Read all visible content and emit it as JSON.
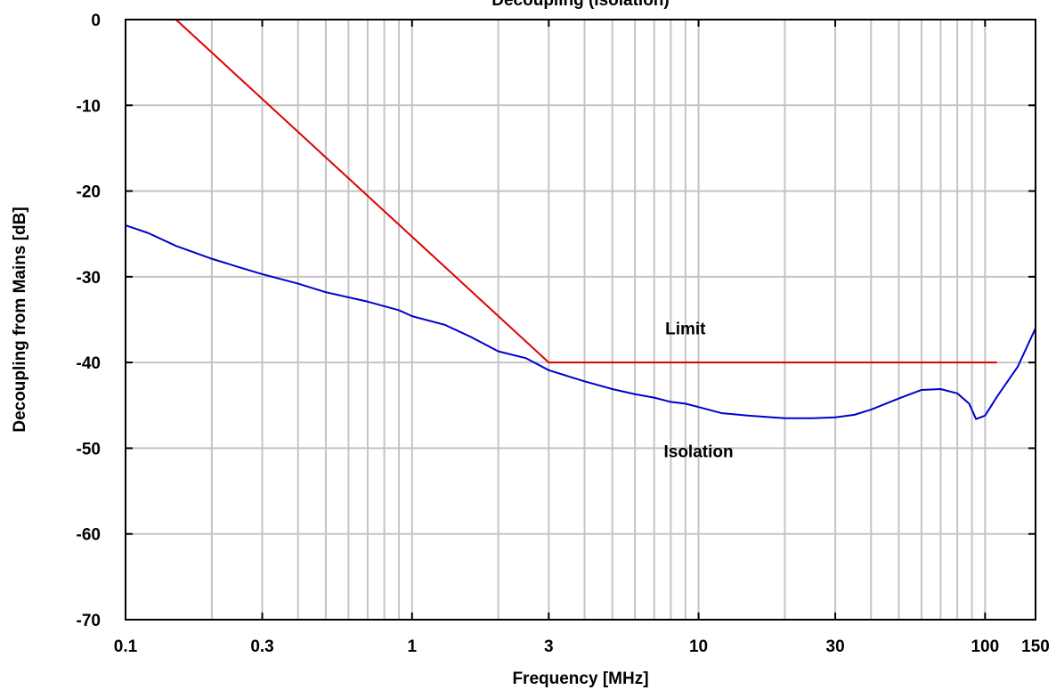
{
  "chart_data": {
    "type": "line",
    "title": "Decoupling (Isolation)",
    "xlabel": "Frequency [MHz]",
    "ylabel": "Decoupling from Mains [dB]",
    "xscale": "log",
    "xlim": [
      0.1,
      150
    ],
    "ylim": [
      -70,
      0
    ],
    "grid": true,
    "xticks": [
      {
        "value": 0.1,
        "label": "0.1"
      },
      {
        "value": 0.3,
        "label": "0.3"
      },
      {
        "value": 1,
        "label": "1"
      },
      {
        "value": 3,
        "label": "3"
      },
      {
        "value": 10,
        "label": "10"
      },
      {
        "value": 30,
        "label": "30"
      },
      {
        "value": 100,
        "label": "100"
      },
      {
        "value": 150,
        "label": "150"
      }
    ],
    "yticks": [
      {
        "value": 0,
        "label": "0"
      },
      {
        "value": -10,
        "label": "-10"
      },
      {
        "value": -20,
        "label": "-20"
      },
      {
        "value": -30,
        "label": "-30"
      },
      {
        "value": -40,
        "label": "-40"
      },
      {
        "value": -50,
        "label": "-50"
      },
      {
        "value": -60,
        "label": "-60"
      },
      {
        "value": -70,
        "label": "-70"
      }
    ],
    "series": [
      {
        "name": "Limit",
        "color": "#e00000",
        "x": [
          0.15,
          3,
          110
        ],
        "y": [
          0,
          -40,
          -40
        ]
      },
      {
        "name": "Isolation",
        "color": "#0000cc",
        "x": [
          0.1,
          0.12,
          0.15,
          0.2,
          0.25,
          0.3,
          0.4,
          0.5,
          0.7,
          0.9,
          1,
          1.3,
          1.6,
          2,
          2.5,
          3,
          3.5,
          4,
          5,
          6,
          7,
          8,
          9,
          10,
          12,
          15,
          20,
          25,
          30,
          35,
          40,
          50,
          60,
          70,
          80,
          88,
          93,
          100,
          110,
          130,
          150
        ],
        "y": [
          -24.0,
          -24.9,
          -26.4,
          -27.9,
          -28.9,
          -29.7,
          -30.8,
          -31.8,
          -32.9,
          -33.9,
          -34.6,
          -35.6,
          -37.0,
          -38.7,
          -39.5,
          -40.9,
          -41.6,
          -42.2,
          -43.1,
          -43.7,
          -44.1,
          -44.6,
          -44.8,
          -45.2,
          -45.9,
          -46.2,
          -46.5,
          -46.5,
          -46.4,
          -46.1,
          -45.5,
          -44.2,
          -43.2,
          -43.1,
          -43.6,
          -44.8,
          -46.6,
          -46.2,
          -44.0,
          -40.5,
          -36.0
        ]
      }
    ],
    "annotations": [
      {
        "text": "Limit",
        "x": 9,
        "y": -36
      },
      {
        "text": "Isolation",
        "x": 10,
        "y": -50.3
      }
    ]
  }
}
